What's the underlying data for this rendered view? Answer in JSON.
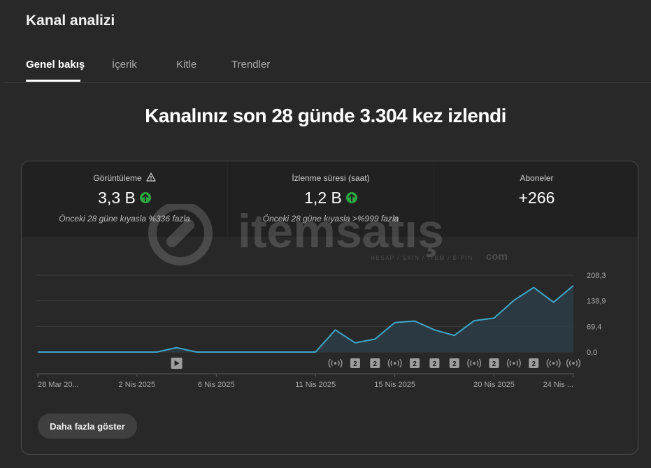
{
  "page": {
    "title": "Kanal analizi"
  },
  "tabs": [
    {
      "label": "Genel bakış",
      "active": true
    },
    {
      "label": "İçerik",
      "active": false
    },
    {
      "label": "Kitle",
      "active": false
    },
    {
      "label": "Trendler",
      "active": false
    }
  ],
  "headline": "Kanalınız son 28 günde 3.304 kez izlendi",
  "metrics": [
    {
      "label": "Görüntüleme",
      "value": "3,3 B",
      "note": "Önceki 28 güne kıyasla %336 fazla",
      "trend": "up",
      "warning": true
    },
    {
      "label": "İzlenme süresi (saat)",
      "value": "1,2 B",
      "note": "Önceki 28 güne kıyasla >%999 fazla",
      "trend": "up",
      "warning": false
    },
    {
      "label": "Aboneler",
      "value": "+266",
      "note": "",
      "trend": null,
      "warning": false
    }
  ],
  "watermark": {
    "brand": "itemsatış",
    "tagline": "HESAP / SKIN / ITEM / E-PIN",
    "suffix": "com"
  },
  "chart_data": {
    "type": "area",
    "x_labels": [
      "28 Mar 20...",
      "2 Nis 2025",
      "6 Nis 2025",
      "11 Nis 2025",
      "15 Nis 2025",
      "20 Nis 2025",
      "24 Nis ..."
    ],
    "y_ticks": [
      "208,3",
      "138,9",
      "69,4",
      "0,0"
    ],
    "ylim": [
      0,
      208.3
    ],
    "values": [
      0,
      0,
      0,
      0,
      0,
      0,
      0,
      12,
      0,
      0,
      0,
      0,
      0,
      0,
      0,
      60,
      25,
      35,
      80,
      84,
      60,
      45,
      85,
      92,
      140,
      175,
      135,
      180
    ],
    "colors": {
      "line": "#3ea6c8",
      "fill": "#2b3d47",
      "grid": "#3d3d3d",
      "text": "#aaaaaa",
      "marker": "#9e9e9e"
    },
    "markers": [
      {
        "index": 7,
        "kind": "video"
      },
      {
        "index": 15,
        "kind": "live"
      },
      {
        "index": 16,
        "kind": "count",
        "label": "2"
      },
      {
        "index": 17,
        "kind": "count",
        "label": "2"
      },
      {
        "index": 18,
        "kind": "live"
      },
      {
        "index": 19,
        "kind": "count",
        "label": "2"
      },
      {
        "index": 20,
        "kind": "count",
        "label": "2"
      },
      {
        "index": 21,
        "kind": "count",
        "label": "2"
      },
      {
        "index": 22,
        "kind": "live"
      },
      {
        "index": 23,
        "kind": "count",
        "label": "2"
      },
      {
        "index": 24,
        "kind": "live"
      },
      {
        "index": 25,
        "kind": "count",
        "label": "2"
      },
      {
        "index": 26,
        "kind": "live"
      },
      {
        "index": 27,
        "kind": "live"
      }
    ]
  },
  "actions": {
    "show_more_label": "Daha fazla göster"
  }
}
